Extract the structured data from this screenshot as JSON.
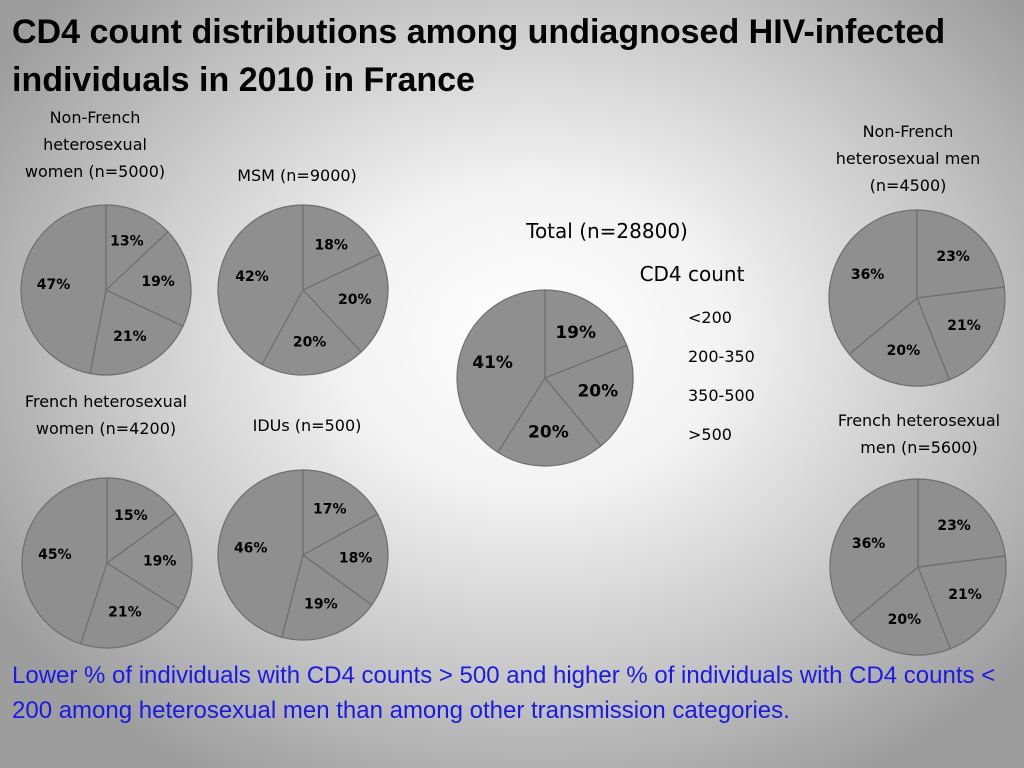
{
  "title": "CD4 count distributions among undiagnosed HIV-infected individuals in 2010 in France",
  "legend": {
    "title": "CD4 count",
    "items": [
      "<200",
      "200-350",
      "350-500",
      ">500"
    ]
  },
  "note": "Lower % of individuals with CD4 counts > 500 and higher % of individuals with CD4 counts < 200 among heterosexual men than among other transmission categories.",
  "colors": {
    "slice_fill": "#8f8f8f",
    "slice_stroke": "#6e6e6e",
    "note_text": "#1a1ae6"
  },
  "chart_data": [
    {
      "type": "pie",
      "title": "Non-French heterosexual women (n=5000)",
      "categories": [
        "<200",
        "200-350",
        "350-500",
        ">500"
      ],
      "values": [
        13,
        19,
        21,
        47
      ],
      "labels": [
        "13%",
        "19%",
        "21%",
        "47%"
      ]
    },
    {
      "type": "pie",
      "title": "MSM (n=9000)",
      "categories": [
        "<200",
        "200-350",
        "350-500",
        ">500"
      ],
      "values": [
        18,
        20,
        20,
        42
      ],
      "labels": [
        "18%",
        "20%",
        "20%",
        "42%"
      ]
    },
    {
      "type": "pie",
      "title": "Total (n=28800)",
      "categories": [
        "<200",
        "200-350",
        "350-500",
        ">500"
      ],
      "values": [
        19,
        20,
        20,
        41
      ],
      "labels": [
        "19%",
        "20%",
        "20%",
        "41%"
      ]
    },
    {
      "type": "pie",
      "title": "Non-French heterosexual men (n=4500)",
      "categories": [
        "<200",
        "200-350",
        "350-500",
        ">500"
      ],
      "values": [
        23,
        21,
        20,
        36
      ],
      "labels": [
        "23%",
        "21%",
        "20%",
        "36%"
      ]
    },
    {
      "type": "pie",
      "title": "French heterosexual women (n=4200)",
      "categories": [
        "<200",
        "200-350",
        "350-500",
        ">500"
      ],
      "values": [
        15,
        19,
        21,
        45
      ],
      "labels": [
        "15%",
        "19%",
        "21%",
        "45%"
      ]
    },
    {
      "type": "pie",
      "title": "IDUs (n=500)",
      "categories": [
        "<200",
        "200-350",
        "350-500",
        ">500"
      ],
      "values": [
        17,
        18,
        19,
        46
      ],
      "labels": [
        "17%",
        "18%",
        "19%",
        "46%"
      ]
    },
    {
      "type": "pie",
      "title": "French heterosexual men (n=5600)",
      "categories": [
        "<200",
        "200-350",
        "350-500",
        ">500"
      ],
      "values": [
        23,
        21,
        20,
        36
      ],
      "labels": [
        "23%",
        "21%",
        "20%",
        "36%"
      ]
    }
  ]
}
